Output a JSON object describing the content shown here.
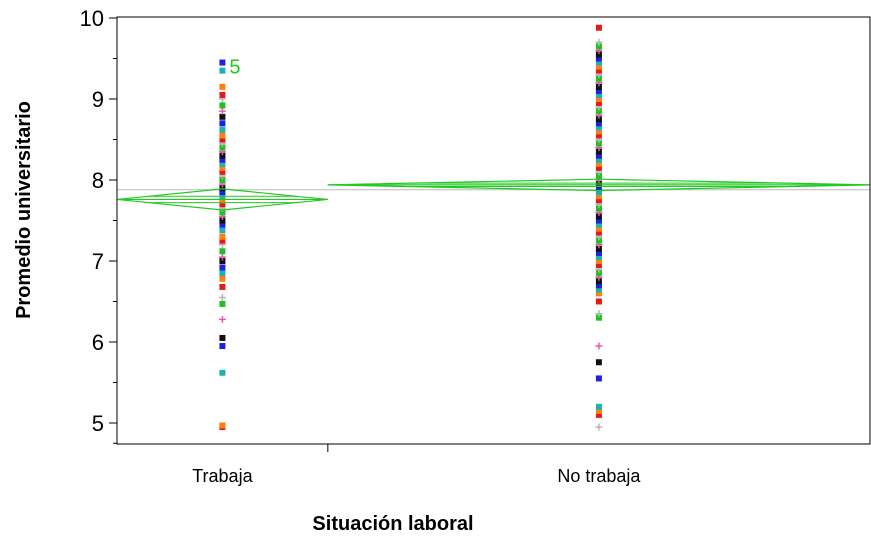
{
  "chart_data": {
    "type": "scatter",
    "subtype": "one-way means diamonds (JMP oneway)",
    "xlabel": "Situación laboral",
    "ylabel": "Promedio universitario",
    "categories": [
      "Trabaja",
      "No trabaja"
    ],
    "ylim": [
      4.75,
      10
    ],
    "yticks": [
      5,
      6,
      7,
      8,
      9,
      10
    ],
    "grand_mean": 7.88,
    "group_width_share": [
      0.28,
      0.72
    ],
    "point_label": "5",
    "colors": {
      "diamond": "#22c922",
      "grand_mean_line": "#b9b9b9",
      "axis": "#000000",
      "point_palette": [
        "#e31a1c",
        "#1f1fe5",
        "#21c021",
        "#ff7f0e",
        "#111111",
        "#b5b5b5",
        "#19b3b3",
        "#e55ca6"
      ]
    },
    "groups": [
      {
        "name": "Trabaja",
        "mean": 7.76,
        "ci": [
          7.63,
          7.89
        ],
        "label_point": {
          "value": 9.4,
          "label": "5"
        },
        "values": [
          4.95,
          4.97,
          5.62,
          5.95,
          6.05,
          6.28,
          6.47,
          6.55,
          6.68,
          6.78,
          6.85,
          6.92,
          7.0,
          7.05,
          7.12,
          7.2,
          7.25,
          7.3,
          7.38,
          7.45,
          7.5,
          7.55,
          7.6,
          7.65,
          7.7,
          7.75,
          7.8,
          7.85,
          7.9,
          7.95,
          8.0,
          8.05,
          8.1,
          8.15,
          8.2,
          8.25,
          8.3,
          8.35,
          8.4,
          8.45,
          8.5,
          8.55,
          8.62,
          8.7,
          8.78,
          8.85,
          8.92,
          9.0,
          9.05,
          9.15,
          9.35,
          9.45
        ]
      },
      {
        "name": "No trabaja",
        "mean": 7.94,
        "ci": [
          7.87,
          8.01
        ],
        "values": [
          4.95,
          5.1,
          5.15,
          5.2,
          5.55,
          5.75,
          5.95,
          6.3,
          6.35,
          6.5,
          6.6,
          6.65,
          6.7,
          6.75,
          6.8,
          6.85,
          6.9,
          6.95,
          7.0,
          7.05,
          7.1,
          7.15,
          7.2,
          7.25,
          7.3,
          7.35,
          7.4,
          7.45,
          7.5,
          7.55,
          7.6,
          7.65,
          7.7,
          7.75,
          7.8,
          7.85,
          7.9,
          7.95,
          8.0,
          8.05,
          8.1,
          8.15,
          8.2,
          8.25,
          8.3,
          8.35,
          8.4,
          8.45,
          8.5,
          8.55,
          8.6,
          8.65,
          8.7,
          8.75,
          8.8,
          8.85,
          8.9,
          8.95,
          9.0,
          9.05,
          9.1,
          9.15,
          9.2,
          9.25,
          9.3,
          9.35,
          9.4,
          9.45,
          9.5,
          9.55,
          9.6,
          9.65,
          9.7,
          9.88
        ]
      }
    ]
  }
}
